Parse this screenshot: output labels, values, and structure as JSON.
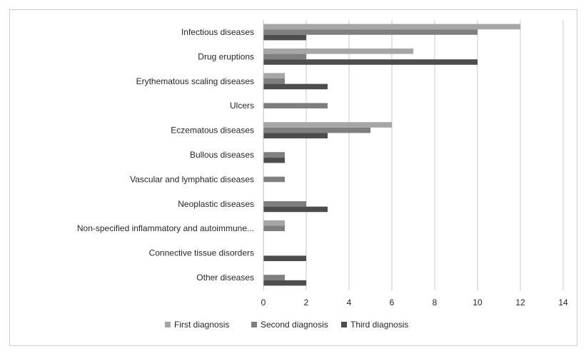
{
  "chart_data": {
    "type": "bar",
    "orientation": "horizontal",
    "categories": [
      "Infectious diseases",
      "Drug eruptions",
      "Erythematous scaling diseases",
      "Ulcers",
      "Eczematous diseases",
      "Bullous diseases",
      "Vascular and lymphatic diseases",
      "Neoplastic diseases",
      "Non-specified inflammatory and autoimmune...",
      "Connective tissue disorders",
      "Other diseases"
    ],
    "series": [
      {
        "name": "First diagnosis",
        "color": "#a6a6a6",
        "values": [
          12,
          7,
          1,
          0,
          6,
          0,
          0,
          0,
          1,
          0,
          0
        ]
      },
      {
        "name": "Second diagnosis",
        "color": "#7f7f7f",
        "values": [
          10,
          2,
          1,
          3,
          5,
          1,
          1,
          2,
          1,
          0,
          1
        ]
      },
      {
        "name": "Third diagnosis",
        "color": "#4d4d4d",
        "values": [
          2,
          10,
          3,
          0,
          3,
          1,
          0,
          3,
          0,
          2,
          2
        ]
      }
    ],
    "xlim": [
      0,
      14
    ],
    "xticks": [
      0,
      2,
      4,
      6,
      8,
      10,
      12,
      14
    ],
    "grid": "vertical",
    "legend": "bottom"
  }
}
